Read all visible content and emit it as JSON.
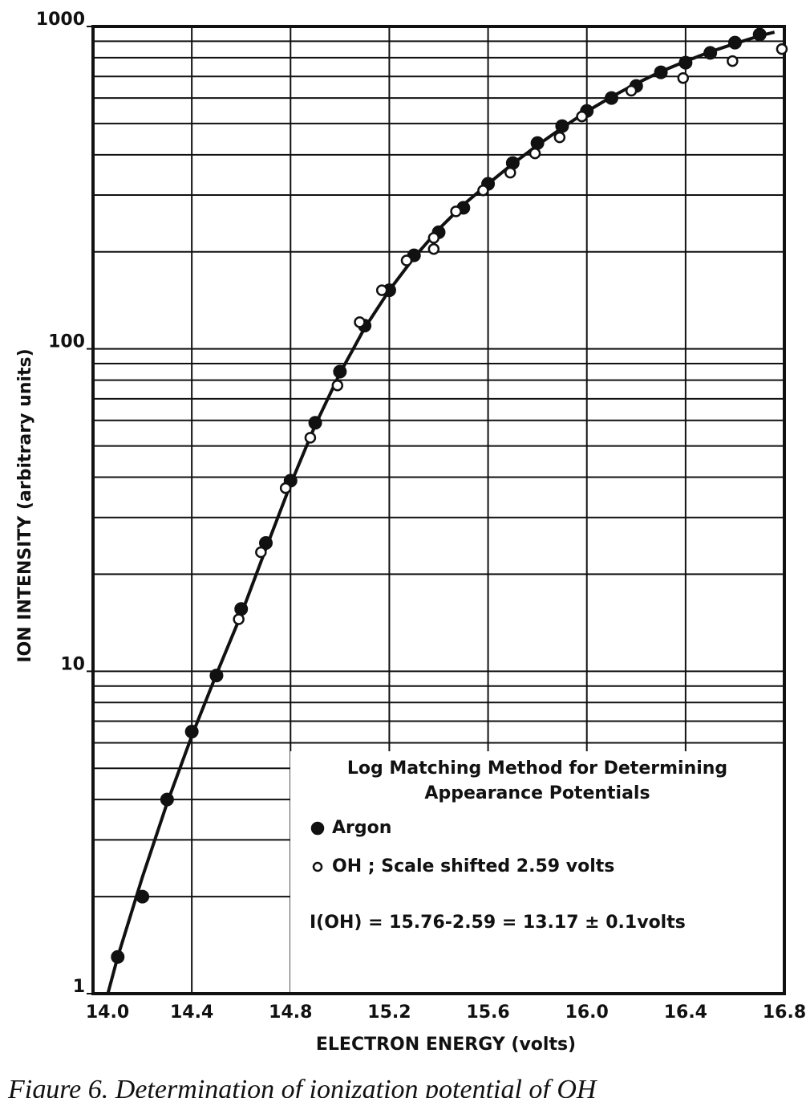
{
  "chart_data": {
    "type": "scatter",
    "log_y": true,
    "grid": true,
    "x_label": "ELECTRON ENERGY (volts)",
    "y_label": "ION INTENSITY (arbitrary units)",
    "xlim": [
      14.0,
      16.8
    ],
    "ylim": [
      1,
      1000
    ],
    "xticks": [
      {
        "value": 14.0,
        "label": "14.0"
      },
      14.4,
      14.8,
      15.2,
      15.6,
      {
        "value": 16.0,
        "label": "16.0"
      },
      16.4,
      16.8
    ],
    "yticks": [
      1,
      10,
      100,
      1000
    ],
    "yminorticks": [
      2,
      3,
      4,
      5,
      6,
      7,
      8,
      9,
      20,
      30,
      40,
      50,
      60,
      70,
      80,
      90,
      200,
      300,
      400,
      500,
      600,
      700,
      800,
      900
    ],
    "legend_title": [
      "Log Matching Method for Determining",
      "Appearance Potentials"
    ],
    "series": [
      {
        "name": "Argon",
        "color": "#111111",
        "marker": "filled",
        "x": [
          14.1,
          14.2,
          14.3,
          14.4,
          14.5,
          14.6,
          14.7,
          14.8,
          14.9,
          15.0,
          15.1,
          15.2,
          15.3,
          15.4,
          15.5,
          15.6,
          15.7,
          15.8,
          15.9,
          16.0,
          16.1,
          16.2,
          16.3,
          16.4,
          16.5,
          16.6,
          16.7
        ],
        "values": [
          1.3,
          2.0,
          4.0,
          6.5,
          9.7,
          15.6,
          25,
          39,
          59,
          85,
          118,
          152,
          195,
          230,
          274,
          325,
          377,
          435,
          491,
          547,
          600,
          654,
          721,
          772,
          828,
          891,
          944
        ]
      },
      {
        "name": "OH ; Scale shifted 2.59 volts",
        "color": "#111111",
        "marker": "open",
        "x": [
          14.59,
          14.68,
          14.78,
          14.88,
          14.99,
          15.08,
          15.17,
          15.27,
          15.38,
          15.38,
          15.47,
          15.58,
          15.69,
          15.79,
          15.89,
          15.98,
          16.18,
          16.39,
          16.59,
          16.79
        ],
        "values": [
          14.5,
          23.4,
          37,
          53,
          77,
          121,
          152,
          188,
          221,
          204,
          267,
          310,
          352,
          404,
          453,
          526,
          632,
          692,
          781,
          851
        ]
      }
    ],
    "fit_curve": {
      "x": [
        14.06,
        14.1,
        14.2,
        14.3,
        14.4,
        14.5,
        14.6,
        14.7,
        14.8,
        14.9,
        15.0,
        15.1,
        15.2,
        15.3,
        15.4,
        15.5,
        15.6,
        15.7,
        15.8,
        15.9,
        16.0,
        16.1,
        16.2,
        16.3,
        16.4,
        16.5,
        16.6,
        16.7,
        16.76
      ],
      "values": [
        1,
        1.3,
        2.3,
        3.9,
        6.3,
        9.8,
        15,
        24,
        38,
        58,
        84,
        116,
        152,
        192,
        235,
        280,
        325,
        375,
        428,
        485,
        545,
        605,
        665,
        725,
        780,
        835,
        885,
        935,
        960
      ]
    },
    "annotation": "I(OH) = 15.76-2.59 = 13.17 ± 0.1volts",
    "caption": "Figure 6. Determination of ionization potential of OH"
  }
}
